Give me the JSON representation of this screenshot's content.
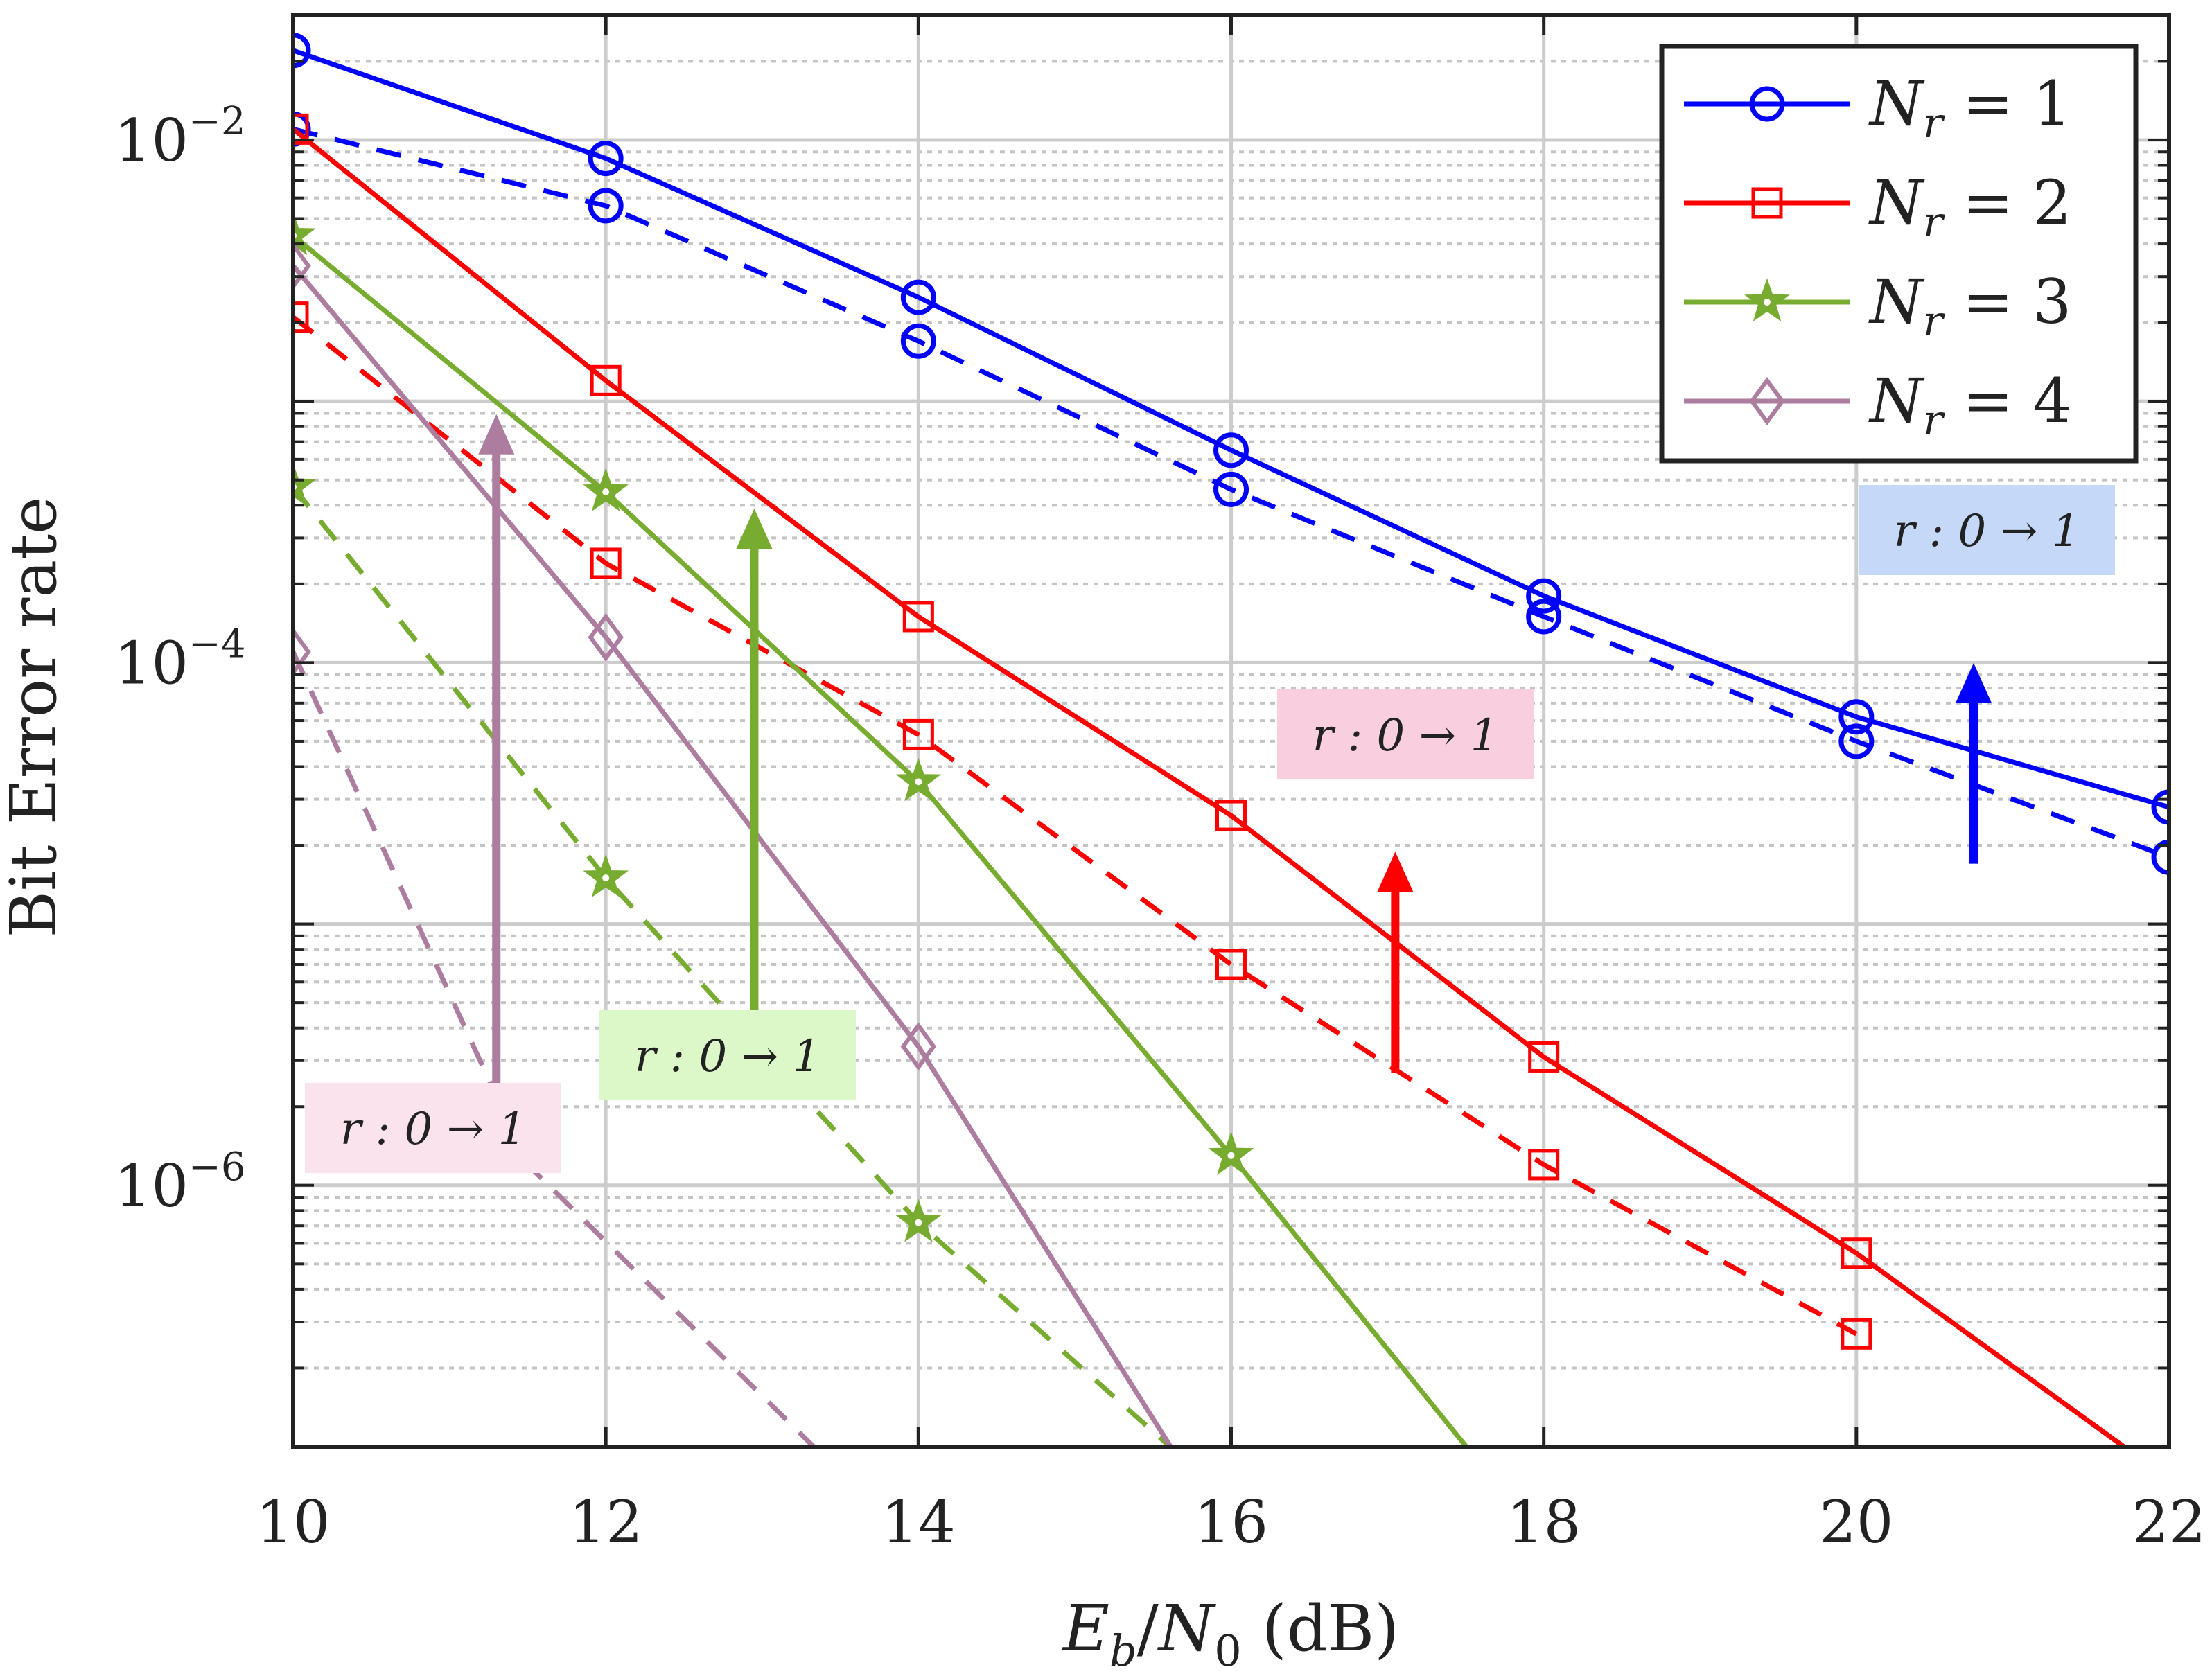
{
  "chart_data": {
    "type": "line",
    "xlabel": "E_b/N_0 (dB)",
    "xlabel_parts": {
      "e": "E",
      "b": "b",
      "slash": "/",
      "n": "N",
      "zero": "0",
      "unit": " (dB)"
    },
    "ylabel": "Bit Error rate",
    "y_scale": "log",
    "xlim": [
      10,
      22
    ],
    "ylim": [
      1e-07,
      0.03
    ],
    "x_ticks": [
      10,
      12,
      14,
      16,
      18,
      20,
      22
    ],
    "x_tick_labels": [
      "10",
      "12",
      "14",
      "16",
      "18",
      "20",
      "22"
    ],
    "y_ticks": [
      0.01,
      0.0001,
      1e-06
    ],
    "y_tick_labels": [
      {
        "base": "10",
        "exp": "−2"
      },
      {
        "base": "10",
        "exp": "−4"
      },
      {
        "base": "10",
        "exp": "−6"
      }
    ],
    "grid": true,
    "legend_position": "top-right",
    "legend_note": "solid: r = 0, dashed: r = 1 (not printed)",
    "series": [
      {
        "name": "N_r = 1",
        "legend": {
          "n": "N",
          "sub": "r",
          "eq": " = 1"
        },
        "color": "#0000ff",
        "marker": "circle",
        "dash": false,
        "x": [
          10,
          12,
          14,
          16,
          18,
          20,
          22
        ],
        "y": [
          0.022,
          0.0085,
          0.0025,
          0.00065,
          0.00018,
          6.2e-05,
          2.8e-05
        ]
      },
      {
        "name": "N_r = 1",
        "color": "#0000ff",
        "marker": "circle",
        "dash": true,
        "x": [
          10,
          12,
          14,
          16,
          18,
          20,
          22
        ],
        "y": [
          0.011,
          0.0056,
          0.0017,
          0.00046,
          0.00015,
          5e-05,
          1.8e-05
        ]
      },
      {
        "name": "N_r = 2",
        "legend": {
          "n": "N",
          "sub": "r",
          "eq": " = 2"
        },
        "color": "#ff0000",
        "marker": "square",
        "dash": false,
        "x": [
          10,
          12,
          14,
          16,
          18,
          20,
          22
        ],
        "y": [
          0.011,
          0.0012,
          0.00015,
          2.6e-05,
          3.1e-06,
          5.5e-07,
          7.5e-08
        ]
      },
      {
        "name": "N_r = 2",
        "color": "#ff0000",
        "marker": "square",
        "dash": true,
        "x": [
          10,
          12,
          14,
          16,
          18,
          20
        ],
        "y": [
          0.0021,
          0.00024,
          5.3e-05,
          7e-06,
          1.2e-06,
          2.7e-07
        ]
      },
      {
        "name": "N_r = 3",
        "legend": {
          "n": "N",
          "sub": "r",
          "eq": " = 3"
        },
        "color": "#77ac30",
        "marker": "star",
        "dash": false,
        "x": [
          10,
          12,
          14,
          16,
          18
        ],
        "y": [
          0.0043,
          0.00045,
          3.5e-05,
          1.3e-06,
          4.3e-08
        ]
      },
      {
        "name": "N_r = 3",
        "color": "#77ac30",
        "marker": "star",
        "dash": true,
        "x": [
          10,
          12,
          14,
          16
        ],
        "y": [
          0.00047,
          1.5e-05,
          7.2e-07,
          6.2e-08
        ]
      },
      {
        "name": "N_r = 4",
        "legend": {
          "n": "N",
          "sub": "r",
          "eq": " = 4"
        },
        "color": "#ad7da0",
        "marker": "diamond",
        "dash": false,
        "x": [
          10,
          12,
          14,
          16
        ],
        "y": [
          0.0033,
          0.000125,
          3.4e-06,
          4.3e-08
        ]
      },
      {
        "name": "N_r = 4",
        "color": "#ad7da0",
        "marker": "diamond",
        "dash": true,
        "x": [
          10,
          11.5,
          13.33
        ],
        "y": [
          0.00011,
          1.2e-06,
          1e-07
        ]
      }
    ],
    "annotations": [
      {
        "text": "r : 0 → 1",
        "color": "#0000ff",
        "box": "#c5d8f8",
        "arrow_x": 20.75,
        "arrow_from": 1.7e-05,
        "arrow_to": 9.5e-05
      },
      {
        "text": "r : 0 → 1",
        "color": "#ff0000",
        "box": "#f9cfe0",
        "arrow_x": 17.05,
        "arrow_from": 2.7e-06,
        "arrow_to": 1.8e-05
      },
      {
        "text": "r : 0 → 1",
        "color": "#77ac30",
        "box": "#dcf8c8",
        "arrow_x": 12.95,
        "arrow_from": 2.8e-06,
        "arrow_to": 0.00037
      },
      {
        "text": "r : 0 → 1",
        "color": "#ad7da0",
        "box": "#fbe3ed",
        "arrow_x": 11.3,
        "arrow_from": 1.5e-06,
        "arrow_to": 0.00085
      }
    ]
  }
}
